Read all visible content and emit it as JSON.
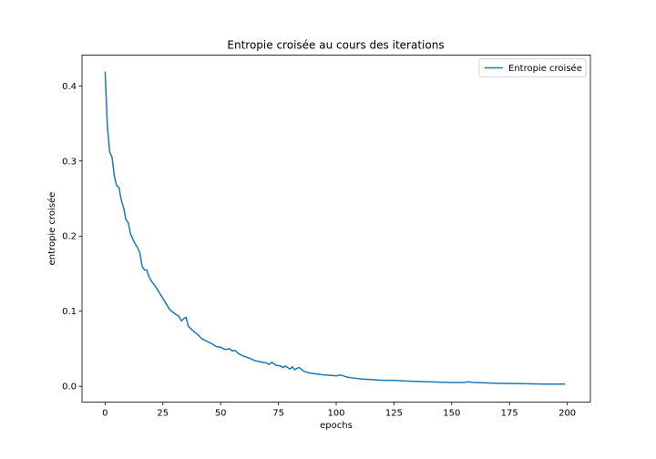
{
  "chart_data": {
    "type": "line",
    "title": "Entropie croisée au cours des iterations",
    "xlabel": "epochs",
    "ylabel": "entropie croisée",
    "xlim": [
      -10,
      210
    ],
    "ylim": [
      -0.021,
      0.441
    ],
    "xticks": [
      0,
      25,
      50,
      75,
      100,
      125,
      150,
      175,
      200
    ],
    "yticks": [
      0.0,
      0.1,
      0.2,
      0.3,
      0.4
    ],
    "ytick_labels": [
      "0.0",
      "0.1",
      "0.2",
      "0.3",
      "0.4"
    ],
    "grid": false,
    "legend_position": "top-right",
    "series": [
      {
        "name": "Entropie croisée",
        "color": "#1f77b4",
        "x": [
          0,
          1,
          2,
          3,
          4,
          5,
          6,
          7,
          8,
          9,
          10,
          11,
          12,
          13,
          14,
          15,
          16,
          17,
          18,
          19,
          20,
          22,
          24,
          26,
          28,
          30,
          32,
          33,
          34,
          35,
          36,
          38,
          40,
          42,
          44,
          46,
          48,
          50,
          52,
          54,
          55,
          56,
          58,
          60,
          62,
          65,
          68,
          70,
          71,
          72,
          74,
          76,
          77,
          78,
          80,
          81,
          82,
          83,
          84,
          86,
          88,
          90,
          95,
          100,
          102,
          105,
          110,
          115,
          120,
          125,
          130,
          140,
          150,
          155,
          157,
          160,
          170,
          180,
          190,
          199
        ],
        "values": [
          0.419,
          0.345,
          0.312,
          0.305,
          0.28,
          0.267,
          0.265,
          0.248,
          0.238,
          0.222,
          0.218,
          0.203,
          0.196,
          0.19,
          0.185,
          0.178,
          0.16,
          0.155,
          0.155,
          0.146,
          0.14,
          0.132,
          0.122,
          0.112,
          0.102,
          0.097,
          0.093,
          0.087,
          0.09,
          0.092,
          0.08,
          0.074,
          0.069,
          0.063,
          0.06,
          0.057,
          0.053,
          0.052,
          0.049,
          0.05,
          0.047,
          0.048,
          0.043,
          0.04,
          0.038,
          0.034,
          0.032,
          0.031,
          0.029,
          0.032,
          0.028,
          0.027,
          0.025,
          0.027,
          0.023,
          0.026,
          0.022,
          0.024,
          0.025,
          0.02,
          0.018,
          0.017,
          0.015,
          0.014,
          0.015,
          0.012,
          0.01,
          0.009,
          0.008,
          0.008,
          0.007,
          0.006,
          0.005,
          0.005,
          0.006,
          0.005,
          0.004,
          0.0035,
          0.003,
          0.003
        ]
      }
    ]
  }
}
